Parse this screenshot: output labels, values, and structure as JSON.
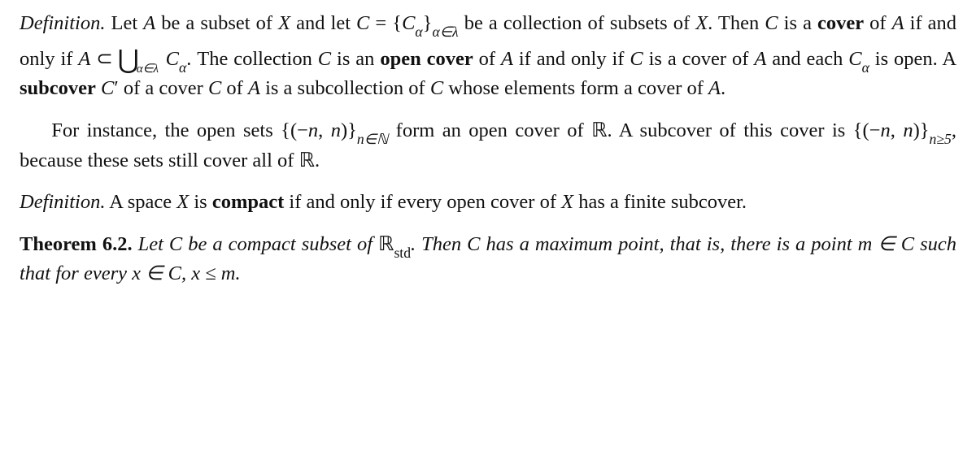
{
  "fontsize_pt": 24.5,
  "line_height": 1.38,
  "text_color": "#111111",
  "background_color": "#ffffff",
  "def1": {
    "label": "Definition.",
    "t1": "Let ",
    "A": "A",
    "t2": " be a subset of ",
    "X": "X",
    "t3": " and let ",
    "C": "C",
    "eq": " = {",
    "Calpha": "C",
    "alpha": "α",
    "brace_sub": "}",
    "idx": "α∈λ",
    "t4": " be a collection of subsets of ",
    "period": ".",
    "t5": "Then ",
    "t6": " is a ",
    "cover": "cover",
    "t7": " of ",
    "t8": " if and only if ",
    "subset": " ⊂ ",
    "cup": "⋃",
    "cup_idx": "α∈λ",
    "t9": ". The collection ",
    "t10": " is an ",
    "opencover": "open cover",
    "t11": " of ",
    "t12": " if and only if ",
    "t13": " is a cover of ",
    "t14": " and each ",
    "t15": " is open. A ",
    "subcover": "subcover",
    "Cprime": "C",
    "prime": "′",
    "t16": " of a cover ",
    "t17": " of ",
    "t18": " is a subcollection of ",
    "t19": " whose elements form a cover of "
  },
  "ex": {
    "t1": "For instance, the open sets {(−",
    "n": "n",
    "t2": ", ",
    "t3": ")}",
    "idx1": "n∈ℕ",
    "t4": " form an open cover of ",
    "R": "ℝ",
    "t5": ". A subcover of this cover is {(−",
    "t6": ")}",
    "idx2": "n≥5",
    "t7": ", because these sets still cover all of ",
    "period": "."
  },
  "def2": {
    "label": "Definition.",
    "t1": "A space ",
    "X": "X",
    "t2": " is ",
    "compact": "compact",
    "t3": " if and only if every open cover of ",
    "t4": " has a finite subcover."
  },
  "thm": {
    "label": "Theorem 6.2.",
    "t1": "Let ",
    "C": "C",
    "t2": " be a compact subset of ",
    "R": "ℝ",
    "std": "std",
    "t3": ". Then ",
    "t4": " has a maximum point, that is, there is a point ",
    "m": "m",
    "in": " ∈ ",
    "t5": " such that for every ",
    "x": "x",
    "t6": ", ",
    "leq": " ≤ ",
    "period": "."
  }
}
